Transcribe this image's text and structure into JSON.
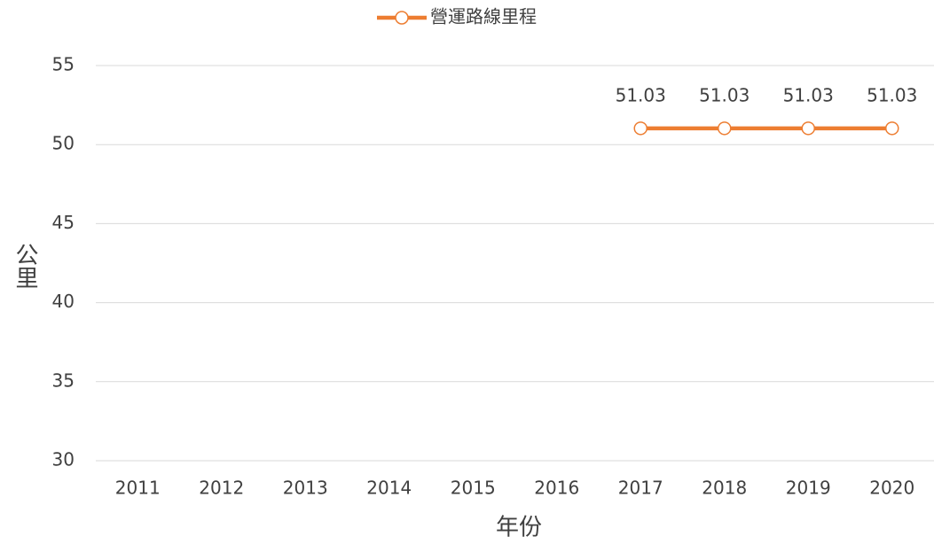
{
  "chart_data": {
    "type": "line",
    "x_label": "年份",
    "y_label": "公里",
    "categories": [
      "2011",
      "2012",
      "2013",
      "2014",
      "2015",
      "2016",
      "2017",
      "2018",
      "2019",
      "2020"
    ],
    "series": [
      {
        "name": "營運路線里程",
        "color": "#ed7d31",
        "values": [
          null,
          null,
          null,
          null,
          null,
          null,
          51.03,
          51.03,
          51.03,
          51.03
        ]
      }
    ],
    "ylim": [
      30,
      55
    ],
    "yticks": [
      30,
      35,
      40,
      45,
      50,
      55
    ],
    "grid": true,
    "legend": "top"
  }
}
